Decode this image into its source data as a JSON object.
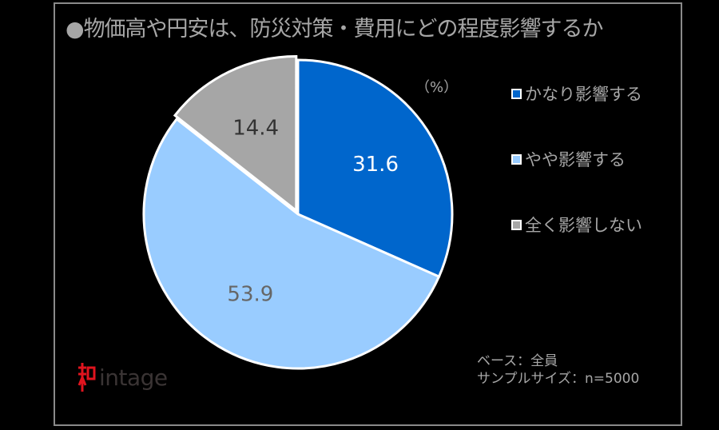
{
  "title": "物価高や円安は、防災対策・費用にどの程度影響するか",
  "title_bullet": "●",
  "chart_data": {
    "type": "pie",
    "unit_label": "（%）",
    "categories": [
      "かなり影響する",
      "やや影響する",
      "全く影響しない"
    ],
    "values": [
      31.6,
      53.9,
      14.4
    ],
    "colors": [
      "#0066cc",
      "#99ccff",
      "#a6a6a6"
    ],
    "label_colors": [
      "#ffffff",
      "#666666",
      "#333333"
    ],
    "start": "12 o'clock, clockwise",
    "exploded": [
      false,
      false,
      true
    ],
    "legend_position": "right"
  },
  "notes": {
    "base": "ベース：全員",
    "sample": "サンプルサイズ：n=5000"
  },
  "logo": {
    "text": "intage",
    "mark": "知"
  }
}
